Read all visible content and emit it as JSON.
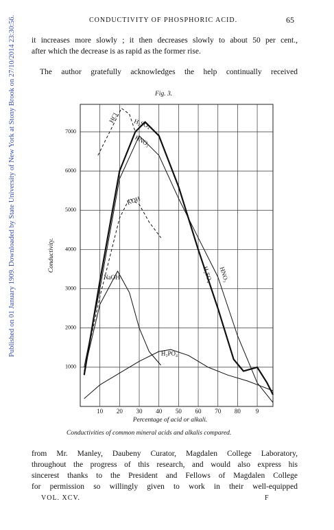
{
  "watermark": "Published on 01 January 1909. Downloaded by State University of New York at Stony Brook on 27/10/2014 23:30:56.",
  "header": {
    "title": "CONDUCTIVITY OF PHOSPHORIC ACID.",
    "page": "65"
  },
  "body": {
    "paragraphs": [
      {
        "lines": [
          "it increases more slowly ; it then decreases slowly to about 50 per cent.,",
          "after which the decrease is as rapid as the former rise."
        ]
      },
      {
        "lines": [
          "The author gratefully acknowledges the help continually received"
        ]
      },
      {
        "lines": [
          "from Mr. Manley, Daubeny Curator, Magdalen College Laboratory,",
          "throughout the progress of this research, and would also express his",
          "sincerest thanks to the President and Fellows of Magdalen College",
          "for permission so willingly given to work in their well-equipped"
        ]
      }
    ]
  },
  "figure_label": "Fig. 3.",
  "caption": "Conductivities of common mineral acids and alkalis compared.",
  "footer": {
    "volume": "VOL. XCV.",
    "signature": "F"
  },
  "chart_data": {
    "type": "line",
    "x_label": "Percentage of acid or alkali.",
    "y_label": "Conductivity.",
    "xlim": [
      0,
      98
    ],
    "ylim": [
      0,
      7700
    ],
    "xticks": [
      10,
      20,
      30,
      40,
      50,
      60,
      70,
      80,
      {
        "value": 90,
        "label": "9"
      }
    ],
    "yticks": [
      1000,
      2000,
      3000,
      4000,
      5000,
      6000,
      7000
    ],
    "grid": true,
    "series": [
      {
        "name": "HCl",
        "color": "#111111",
        "dashed": true,
        "line_width": 1,
        "x": [
          9,
          15,
          21,
          25,
          28
        ],
        "values": [
          6400,
          7000,
          7600,
          7450,
          7000
        ]
      },
      {
        "name": "H₂SO₄",
        "color": "#111111",
        "dashed": false,
        "line_width": 2.2,
        "x": [
          2,
          10,
          20,
          28,
          33,
          40,
          50,
          60,
          70,
          78,
          83,
          90,
          95,
          98
        ],
        "values": [
          800,
          3200,
          6000,
          7000,
          7250,
          6900,
          5600,
          4000,
          2500,
          1200,
          900,
          1000,
          600,
          300
        ]
      },
      {
        "name": "HNO₃",
        "color": "#111111",
        "dashed": false,
        "line_width": 1,
        "x": [
          2,
          10,
          20,
          30,
          40,
          50,
          60,
          70,
          80,
          90,
          98
        ],
        "values": [
          1000,
          3000,
          5800,
          6900,
          6400,
          5300,
          4300,
          3300,
          1800,
          600,
          100
        ]
      },
      {
        "name": "KOH",
        "color": "#111111",
        "dashed": true,
        "line_width": 1,
        "x": [
          3,
          10,
          20,
          25,
          30,
          35,
          41
        ],
        "values": [
          1200,
          2800,
          4800,
          5300,
          5150,
          4700,
          4300
        ]
      },
      {
        "name": "NaOH",
        "color": "#111111",
        "dashed": false,
        "line_width": 1,
        "x": [
          2,
          10,
          19,
          25,
          30,
          35,
          41
        ],
        "values": [
          900,
          2600,
          3450,
          2900,
          2000,
          1400,
          1050
        ]
      },
      {
        "name": "H₃PO₄",
        "color": "#111111",
        "dashed": false,
        "line_width": 1,
        "x": [
          2,
          10,
          20,
          30,
          40,
          46,
          55,
          65,
          75,
          85,
          98
        ],
        "values": [
          200,
          550,
          850,
          1150,
          1400,
          1450,
          1300,
          1000,
          800,
          650,
          400
        ]
      }
    ]
  }
}
